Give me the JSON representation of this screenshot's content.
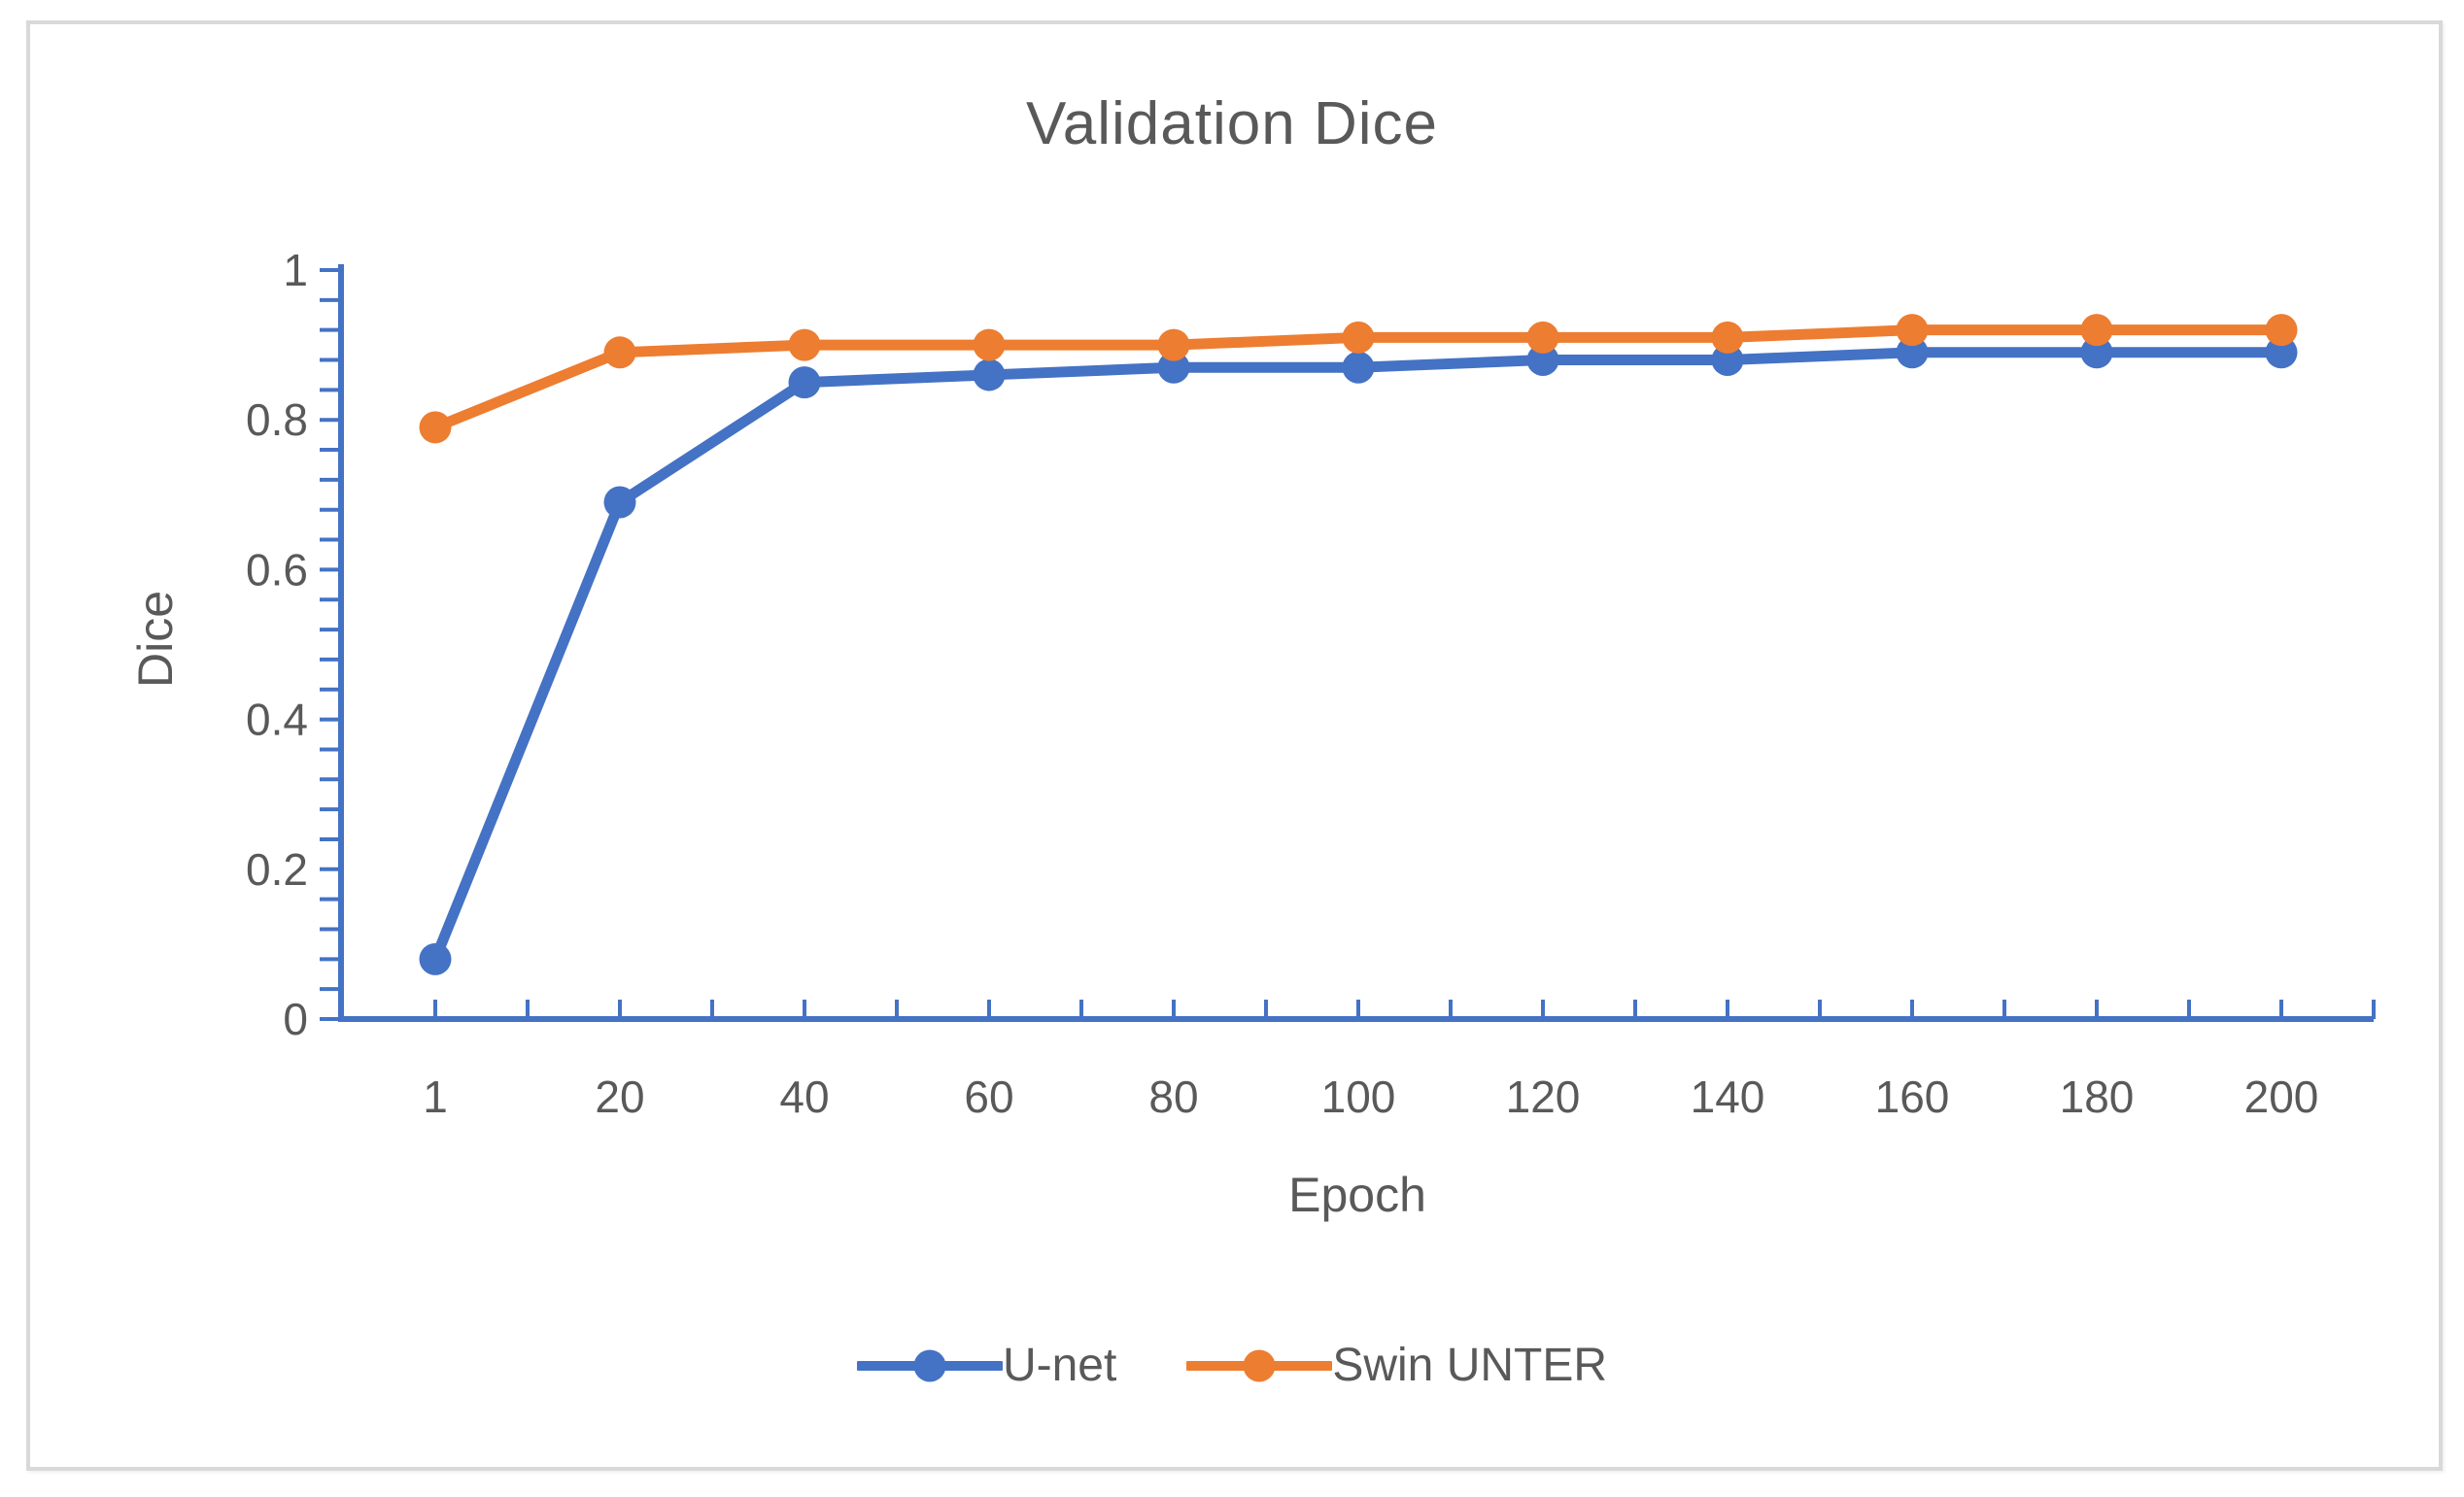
{
  "window": {
    "background_color": "#ffffff",
    "border_color": "#d9d9d9"
  },
  "chart_data": {
    "type": "line",
    "title": "Validation Dice",
    "xlabel": "Epoch",
    "ylabel": "Dice",
    "categories": [
      "1",
      "20",
      "40",
      "60",
      "80",
      "100",
      "120",
      "140",
      "160",
      "180",
      "200"
    ],
    "series": [
      {
        "name": "U-net",
        "color": "#4472C4",
        "values": [
          0.08,
          0.69,
          0.85,
          0.86,
          0.87,
          0.87,
          0.88,
          0.88,
          0.89,
          0.89,
          0.89
        ]
      },
      {
        "name": "Swin UNTER",
        "color": "#ED7D31",
        "values": [
          0.79,
          0.89,
          0.9,
          0.9,
          0.9,
          0.91,
          0.91,
          0.91,
          0.92,
          0.92,
          0.92
        ]
      }
    ],
    "ylim": [
      0,
      1
    ],
    "yticks": [
      0,
      0.2,
      0.4,
      0.6,
      0.8,
      1
    ],
    "ytick_labels": [
      "0",
      "0.2",
      "0.4",
      "0.6",
      "0.8",
      "1"
    ],
    "y_minor_unit": 0.04,
    "grid": "off",
    "legend_position": "bottom",
    "axis_color": "#4472C4",
    "text_color": "#595959",
    "marker": "circle"
  }
}
